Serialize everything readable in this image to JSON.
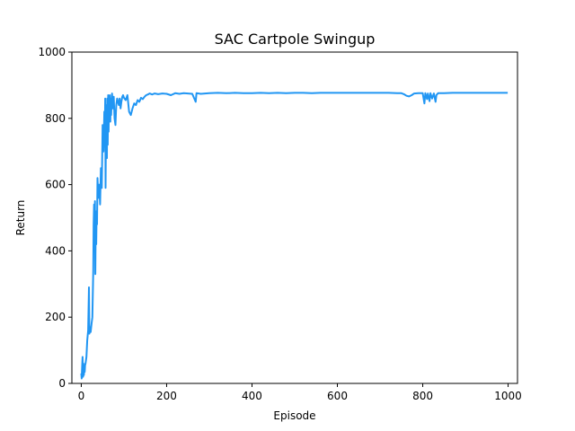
{
  "chart_data": {
    "type": "line",
    "title": "SAC Cartpole Swingup",
    "xlabel": "Episode",
    "ylabel": "Return",
    "xlim": [
      -22,
      1022
    ],
    "ylim": [
      0,
      1000
    ],
    "xticks": [
      0,
      200,
      400,
      600,
      800,
      1000
    ],
    "yticks": [
      0,
      200,
      400,
      600,
      800,
      1000
    ],
    "grid": false,
    "series": [
      {
        "color": "#2196f3",
        "points": [
          [
            0,
            30
          ],
          [
            1,
            15
          ],
          [
            2,
            50
          ],
          [
            3,
            80
          ],
          [
            4,
            20
          ],
          [
            5,
            60
          ],
          [
            6,
            25
          ],
          [
            7,
            40
          ],
          [
            8,
            35
          ],
          [
            9,
            55
          ],
          [
            10,
            60
          ],
          [
            12,
            80
          ],
          [
            14,
            130
          ],
          [
            16,
            160
          ],
          [
            18,
            290
          ],
          [
            19,
            150
          ],
          [
            20,
            170
          ],
          [
            22,
            155
          ],
          [
            24,
            180
          ],
          [
            26,
            200
          ],
          [
            28,
            340
          ],
          [
            29,
            480
          ],
          [
            30,
            540
          ],
          [
            31,
            400
          ],
          [
            32,
            550
          ],
          [
            33,
            330
          ],
          [
            34,
            500
          ],
          [
            35,
            420
          ],
          [
            36,
            520
          ],
          [
            37,
            480
          ],
          [
            38,
            620
          ],
          [
            40,
            560
          ],
          [
            42,
            600
          ],
          [
            44,
            540
          ],
          [
            46,
            650
          ],
          [
            48,
            590
          ],
          [
            50,
            780
          ],
          [
            52,
            700
          ],
          [
            54,
            820
          ],
          [
            55,
            740
          ],
          [
            56,
            860
          ],
          [
            57,
            590
          ],
          [
            58,
            780
          ],
          [
            59,
            840
          ],
          [
            60,
            680
          ],
          [
            61,
            860
          ],
          [
            62,
            720
          ],
          [
            63,
            870
          ],
          [
            64,
            760
          ],
          [
            65,
            850
          ],
          [
            66,
            800
          ],
          [
            67,
            870
          ],
          [
            68,
            790
          ],
          [
            69,
            860
          ],
          [
            70,
            810
          ],
          [
            72,
            875
          ],
          [
            74,
            830
          ],
          [
            76,
            865
          ],
          [
            78,
            800
          ],
          [
            80,
            780
          ],
          [
            82,
            840
          ],
          [
            84,
            860
          ],
          [
            86,
            850
          ],
          [
            88,
            840
          ],
          [
            90,
            860
          ],
          [
            92,
            830
          ],
          [
            94,
            850
          ],
          [
            96,
            865
          ],
          [
            98,
            870
          ],
          [
            100,
            862
          ],
          [
            104,
            855
          ],
          [
            108,
            870
          ],
          [
            112,
            820
          ],
          [
            116,
            810
          ],
          [
            120,
            830
          ],
          [
            124,
            845
          ],
          [
            128,
            840
          ],
          [
            132,
            855
          ],
          [
            136,
            850
          ],
          [
            140,
            862
          ],
          [
            144,
            858
          ],
          [
            148,
            865
          ],
          [
            152,
            870
          ],
          [
            156,
            872
          ],
          [
            160,
            875
          ],
          [
            166,
            872
          ],
          [
            172,
            875
          ],
          [
            180,
            873
          ],
          [
            190,
            875
          ],
          [
            200,
            874
          ],
          [
            210,
            870
          ],
          [
            220,
            876
          ],
          [
            230,
            874
          ],
          [
            240,
            876
          ],
          [
            250,
            875
          ],
          [
            260,
            874
          ],
          [
            268,
            850
          ],
          [
            270,
            876
          ],
          [
            280,
            874
          ],
          [
            300,
            876
          ],
          [
            320,
            877
          ],
          [
            340,
            876
          ],
          [
            360,
            877
          ],
          [
            380,
            876
          ],
          [
            400,
            876
          ],
          [
            420,
            877
          ],
          [
            440,
            876
          ],
          [
            460,
            877
          ],
          [
            480,
            876
          ],
          [
            500,
            877
          ],
          [
            520,
            877
          ],
          [
            540,
            876
          ],
          [
            560,
            877
          ],
          [
            580,
            877
          ],
          [
            600,
            877
          ],
          [
            620,
            877
          ],
          [
            640,
            877
          ],
          [
            660,
            877
          ],
          [
            680,
            877
          ],
          [
            700,
            877
          ],
          [
            720,
            877
          ],
          [
            740,
            876
          ],
          [
            750,
            876
          ],
          [
            756,
            873
          ],
          [
            762,
            868
          ],
          [
            768,
            866
          ],
          [
            774,
            870
          ],
          [
            780,
            875
          ],
          [
            790,
            876
          ],
          [
            800,
            876
          ],
          [
            804,
            845
          ],
          [
            806,
            876
          ],
          [
            810,
            858
          ],
          [
            812,
            875
          ],
          [
            816,
            852
          ],
          [
            818,
            876
          ],
          [
            822,
            860
          ],
          [
            826,
            875
          ],
          [
            830,
            850
          ],
          [
            832,
            870
          ],
          [
            836,
            876
          ],
          [
            850,
            876
          ],
          [
            870,
            877
          ],
          [
            890,
            877
          ],
          [
            910,
            877
          ],
          [
            930,
            877
          ],
          [
            950,
            877
          ],
          [
            970,
            877
          ],
          [
            990,
            877
          ],
          [
            999,
            877
          ]
        ]
      }
    ]
  }
}
